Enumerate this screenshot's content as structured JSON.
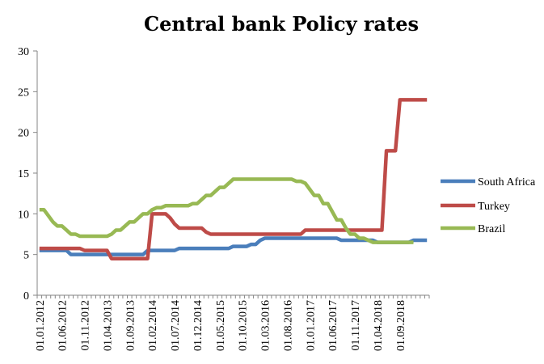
{
  "chart_data": {
    "type": "line",
    "title": "Central bank Policy rates",
    "xlabel": "",
    "ylabel": "",
    "ylim": [
      0,
      30
    ],
    "y_ticks": [
      0,
      5,
      10,
      15,
      20,
      25,
      30
    ],
    "x_tick_labels": [
      "01.01.2012",
      "01.06.2012",
      "01.11.2012",
      "01.04.2013",
      "01.09.2013",
      "01.02.2014",
      "01.07.2014",
      "01.12.2014",
      "01.05.2015",
      "01.10.2015",
      "01.03.2016",
      "01.08.2016",
      "01.01.2017",
      "01.06.2017",
      "01.11.2017",
      "01.04.2018",
      "01.09.2018"
    ],
    "grid": false,
    "legend_position": "right",
    "series": [
      {
        "name": "South Africa",
        "color": "#4a7ebb",
        "points": [
          [
            "2012-01",
            5.5
          ],
          [
            "2012-07",
            5.5
          ],
          [
            "2012-08",
            5.0
          ],
          [
            "2013-12",
            5.0
          ],
          [
            "2014-01",
            5.5
          ],
          [
            "2014-07",
            5.5
          ],
          [
            "2014-08",
            5.75
          ],
          [
            "2015-07",
            5.75
          ],
          [
            "2015-08",
            6.0
          ],
          [
            "2015-11",
            6.0
          ],
          [
            "2015-12",
            6.25
          ],
          [
            "2016-01",
            6.25
          ],
          [
            "2016-02",
            6.75
          ],
          [
            "2016-03",
            7.0
          ],
          [
            "2017-07",
            7.0
          ],
          [
            "2017-08",
            6.75
          ],
          [
            "2018-03",
            6.75
          ],
          [
            "2018-04",
            6.5
          ],
          [
            "2018-11",
            6.5
          ],
          [
            "2018-12",
            6.75
          ],
          [
            "2019-03",
            6.75
          ]
        ]
      },
      {
        "name": "Turkey",
        "color": "#be4b48",
        "points": [
          [
            "2012-01",
            5.75
          ],
          [
            "2012-10",
            5.75
          ],
          [
            "2012-11",
            5.5
          ],
          [
            "2013-04",
            5.5
          ],
          [
            "2013-05",
            4.5
          ],
          [
            "2014-01",
            4.5
          ],
          [
            "2014-02",
            10.0
          ],
          [
            "2014-05",
            10.0
          ],
          [
            "2014-06",
            9.5
          ],
          [
            "2014-07",
            8.75
          ],
          [
            "2014-08",
            8.25
          ],
          [
            "2015-01",
            8.25
          ],
          [
            "2015-02",
            7.75
          ],
          [
            "2015-03",
            7.5
          ],
          [
            "2016-11",
            7.5
          ],
          [
            "2016-12",
            8.0
          ],
          [
            "2018-05",
            8.0
          ],
          [
            "2018-06",
            17.75
          ],
          [
            "2018-08",
            17.75
          ],
          [
            "2018-09",
            24.0
          ],
          [
            "2019-03",
            24.0
          ]
        ]
      },
      {
        "name": "Brazil",
        "color": "#98b954",
        "points": [
          [
            "2012-01",
            10.5
          ],
          [
            "2012-02",
            10.5
          ],
          [
            "2012-03",
            9.75
          ],
          [
            "2012-04",
            9.0
          ],
          [
            "2012-05",
            8.5
          ],
          [
            "2012-06",
            8.5
          ],
          [
            "2012-07",
            8.0
          ],
          [
            "2012-08",
            7.5
          ],
          [
            "2012-09",
            7.5
          ],
          [
            "2012-10",
            7.25
          ],
          [
            "2013-04",
            7.25
          ],
          [
            "2013-05",
            7.5
          ],
          [
            "2013-06",
            8.0
          ],
          [
            "2013-07",
            8.0
          ],
          [
            "2013-08",
            8.5
          ],
          [
            "2013-09",
            9.0
          ],
          [
            "2013-10",
            9.0
          ],
          [
            "2013-11",
            9.5
          ],
          [
            "2013-12",
            10.0
          ],
          [
            "2014-01",
            10.0
          ],
          [
            "2014-02",
            10.5
          ],
          [
            "2014-03",
            10.75
          ],
          [
            "2014-04",
            10.75
          ],
          [
            "2014-05",
            11.0
          ],
          [
            "2014-10",
            11.0
          ],
          [
            "2014-11",
            11.25
          ],
          [
            "2014-12",
            11.25
          ],
          [
            "2015-01",
            11.75
          ],
          [
            "2015-02",
            12.25
          ],
          [
            "2015-03",
            12.25
          ],
          [
            "2015-04",
            12.75
          ],
          [
            "2015-05",
            13.25
          ],
          [
            "2015-06",
            13.25
          ],
          [
            "2015-07",
            13.75
          ],
          [
            "2015-08",
            14.25
          ],
          [
            "2016-09",
            14.25
          ],
          [
            "2016-10",
            14.0
          ],
          [
            "2016-11",
            14.0
          ],
          [
            "2016-12",
            13.75
          ],
          [
            "2017-01",
            13.0
          ],
          [
            "2017-02",
            12.25
          ],
          [
            "2017-03",
            12.25
          ],
          [
            "2017-04",
            11.25
          ],
          [
            "2017-05",
            11.25
          ],
          [
            "2017-06",
            10.25
          ],
          [
            "2017-07",
            9.25
          ],
          [
            "2017-08",
            9.25
          ],
          [
            "2017-09",
            8.25
          ],
          [
            "2017-10",
            7.5
          ],
          [
            "2017-11",
            7.5
          ],
          [
            "2017-12",
            7.0
          ],
          [
            "2018-01",
            7.0
          ],
          [
            "2018-02",
            6.75
          ],
          [
            "2018-03",
            6.5
          ],
          [
            "2018-12",
            6.5
          ]
        ]
      }
    ]
  }
}
